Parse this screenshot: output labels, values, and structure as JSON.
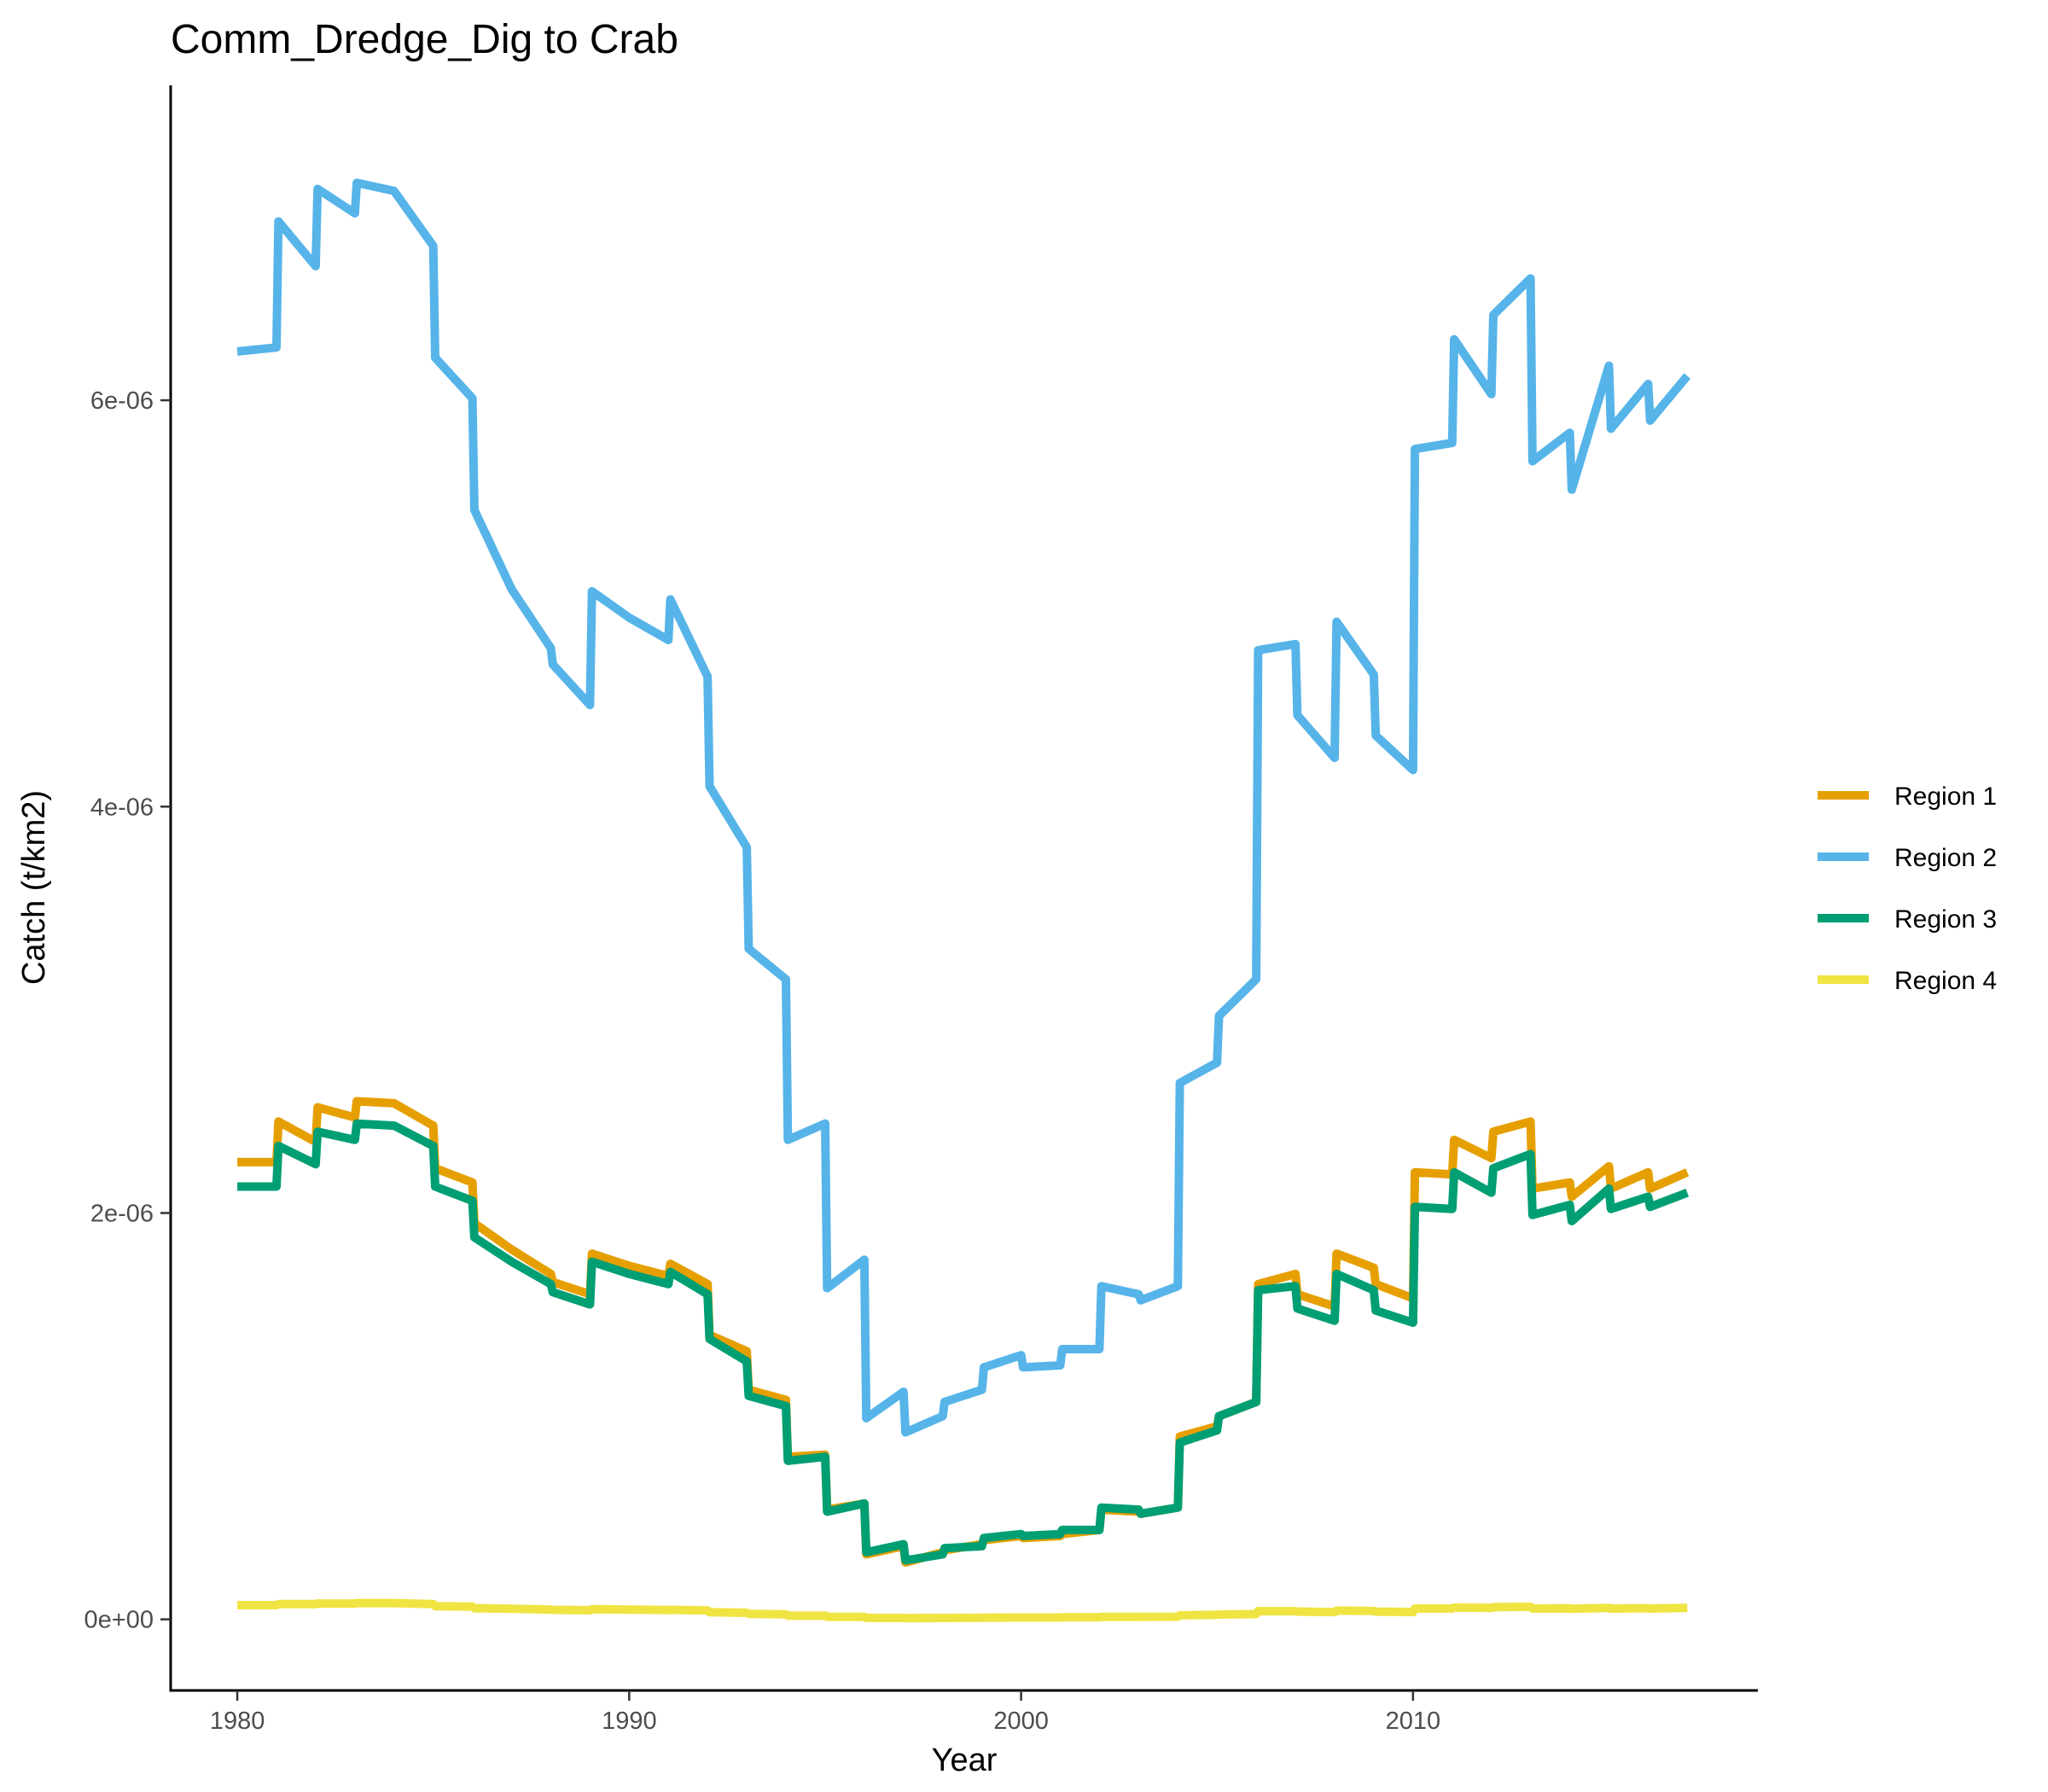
{
  "chart_data": {
    "type": "line",
    "title": "Comm_Dredge_Dig to Crab",
    "xlabel": "Year",
    "ylabel": "Catch (t/km2)",
    "xlim": [
      1978.3,
      2018.8
    ],
    "ylim": [
      -3.5e-07,
      7.55e-06
    ],
    "x_ticks": [
      1980,
      1990,
      2000,
      2010
    ],
    "x_tick_labels": [
      "1980",
      "1990",
      "2000",
      "2010"
    ],
    "y_ticks": [
      0,
      2e-06,
      4e-06,
      6e-06
    ],
    "y_tick_labels": [
      "0e+00",
      "2e-06",
      "4e-06",
      "6e-06"
    ],
    "grid": false,
    "legend_position": "right",
    "x": [
      1980.0,
      1981.0,
      1981.05,
      1982.0,
      1982.05,
      1983.0,
      1983.05,
      1984.0,
      1985.0,
      1985.05,
      1986.0,
      1986.05,
      1987.0,
      1988.0,
      1988.05,
      1989.0,
      1989.05,
      1990.0,
      1991.0,
      1991.05,
      1992.0,
      1992.05,
      1993.0,
      1993.05,
      1994.0,
      1994.05,
      1995.0,
      1995.05,
      1996.0,
      1996.05,
      1997.0,
      1997.05,
      1998.0,
      1998.05,
      1999.0,
      1999.05,
      2000.0,
      2000.05,
      2001.0,
      2001.05,
      2002.0,
      2002.05,
      2003.0,
      2003.05,
      2004.0,
      2004.05,
      2005.0,
      2005.05,
      2006.0,
      2006.05,
      2007.0,
      2007.05,
      2008.0,
      2008.05,
      2009.0,
      2009.05,
      2010.0,
      2010.05,
      2011.0,
      2011.05,
      2012.0,
      2012.05,
      2013.0,
      2013.05,
      2014.0,
      2014.05,
      2015.0,
      2015.05,
      2016.0,
      2016.05,
      2017.0
    ],
    "series": [
      {
        "name": "Region 1",
        "color": "#E69F00",
        "values": [
          2.25e-06,
          2.25e-06,
          2.45e-06,
          2.35e-06,
          2.52e-06,
          2.47e-06,
          2.55e-06,
          2.54e-06,
          2.43e-06,
          2.22e-06,
          2.15e-06,
          1.95e-06,
          1.82e-06,
          1.7e-06,
          1.66e-06,
          1.6e-06,
          1.8e-06,
          1.74e-06,
          1.69e-06,
          1.75e-06,
          1.65e-06,
          1.4e-06,
          1.32e-06,
          1.13e-06,
          1.08e-06,
          8e-07,
          8.1e-07,
          5.4e-07,
          5.7e-07,
          3.2e-07,
          3.6e-07,
          2.8e-07,
          3.3e-07,
          3.4e-07,
          3.7e-07,
          3.9e-07,
          4.1e-07,
          4e-07,
          4.1e-07,
          4.2e-07,
          4.4e-07,
          5.4e-07,
          5.3e-07,
          5.2e-07,
          5.5e-07,
          9e-07,
          9.5e-07,
          1e-06,
          1.07e-06,
          1.65e-06,
          1.7e-06,
          1.6e-06,
          1.54e-06,
          1.8e-06,
          1.73e-06,
          1.65e-06,
          1.58e-06,
          2.2e-06,
          2.19e-06,
          2.36e-06,
          2.27e-06,
          2.4e-06,
          2.45e-06,
          2.12e-06,
          2.15e-06,
          2.08e-06,
          2.23e-06,
          2.12e-06,
          2.2e-06,
          2.12e-06,
          2.2e-06
        ]
      },
      {
        "name": "Region 2",
        "color": "#56B4E9",
        "values": [
          6.24e-06,
          6.26e-06,
          6.88e-06,
          6.66e-06,
          7.04e-06,
          6.92e-06,
          7.07e-06,
          7.03e-06,
          6.76e-06,
          6.21e-06,
          6.01e-06,
          5.46e-06,
          5.07e-06,
          4.78e-06,
          4.7e-06,
          4.5e-06,
          5.06e-06,
          4.93e-06,
          4.82e-06,
          5.02e-06,
          4.64e-06,
          4.1e-06,
          3.8e-06,
          3.3e-06,
          3.15e-06,
          2.36e-06,
          2.44e-06,
          1.63e-06,
          1.77e-06,
          9.9e-07,
          1.12e-06,
          9.2e-07,
          1e-06,
          1.07e-06,
          1.13e-06,
          1.24e-06,
          1.3e-06,
          1.24e-06,
          1.25e-06,
          1.33e-06,
          1.33e-06,
          1.64e-06,
          1.6e-06,
          1.57e-06,
          1.64e-06,
          2.64e-06,
          2.74e-06,
          2.97e-06,
          3.15e-06,
          4.77e-06,
          4.8e-06,
          4.45e-06,
          4.24e-06,
          4.91e-06,
          4.65e-06,
          4.35e-06,
          4.18e-06,
          5.76e-06,
          5.79e-06,
          6.3e-06,
          6.03e-06,
          6.42e-06,
          6.6e-06,
          5.7e-06,
          5.84e-06,
          5.56e-06,
          6.17e-06,
          5.86e-06,
          6.08e-06,
          5.9e-06,
          6.12e-06
        ]
      },
      {
        "name": "Region 3",
        "color": "#009E73",
        "values": [
          2.13e-06,
          2.13e-06,
          2.33e-06,
          2.24e-06,
          2.4e-06,
          2.36e-06,
          2.44e-06,
          2.43e-06,
          2.33e-06,
          2.13e-06,
          2.06e-06,
          1.88e-06,
          1.76e-06,
          1.65e-06,
          1.61e-06,
          1.55e-06,
          1.76e-06,
          1.7e-06,
          1.65e-06,
          1.71e-06,
          1.6e-06,
          1.38e-06,
          1.27e-06,
          1.1e-06,
          1.05e-06,
          7.8e-07,
          8e-07,
          5.3e-07,
          5.7e-07,
          3.3e-07,
          3.7e-07,
          2.9e-07,
          3.2e-07,
          3.5e-07,
          3.6e-07,
          4e-07,
          4.2e-07,
          4.1e-07,
          4.2e-07,
          4.4e-07,
          4.4e-07,
          5.5e-07,
          5.4e-07,
          5.2e-07,
          5.5e-07,
          8.7e-07,
          9.3e-07,
          1e-06,
          1.07e-06,
          1.62e-06,
          1.64e-06,
          1.53e-06,
          1.47e-06,
          1.7e-06,
          1.62e-06,
          1.52e-06,
          1.46e-06,
          2.03e-06,
          2.02e-06,
          2.2e-06,
          2.1e-06,
          2.22e-06,
          2.29e-06,
          1.99e-06,
          2.04e-06,
          1.96e-06,
          2.12e-06,
          2.02e-06,
          2.08e-06,
          2.03e-06,
          2.1e-06
        ]
      },
      {
        "name": "Region 4",
        "color": "#F0E442",
        "values": [
          7e-08,
          7e-08,
          7.5e-08,
          7.5e-08,
          7.8e-08,
          7.8e-08,
          8e-08,
          8e-08,
          7.5e-08,
          6.5e-08,
          6.3e-08,
          5.5e-08,
          5.2e-08,
          4.8e-08,
          4.7e-08,
          4.5e-08,
          5e-08,
          4.8e-08,
          4.6e-08,
          4.7e-08,
          4.4e-08,
          3.5e-08,
          3.2e-08,
          2.7e-08,
          2.5e-08,
          1.8e-08,
          1.8e-08,
          1.2e-08,
          1.2e-08,
          7e-09,
          7e-09,
          6e-09,
          7e-09,
          7e-09,
          8e-09,
          8e-09,
          9e-09,
          9e-09,
          9e-09,
          1e-08,
          1e-08,
          1.2e-08,
          1.2e-08,
          1.2e-08,
          1.3e-08,
          2e-08,
          2.2e-08,
          2.4e-08,
          2.6e-08,
          4e-08,
          4e-08,
          3.8e-08,
          3.6e-08,
          4.3e-08,
          4.1e-08,
          3.8e-08,
          3.6e-08,
          5.3e-08,
          5.3e-08,
          5.8e-08,
          5.6e-08,
          6e-08,
          6.2e-08,
          5.3e-08,
          5.4e-08,
          5.2e-08,
          5.6e-08,
          5.3e-08,
          5.5e-08,
          5.3e-08,
          5.6e-08
        ]
      }
    ]
  }
}
